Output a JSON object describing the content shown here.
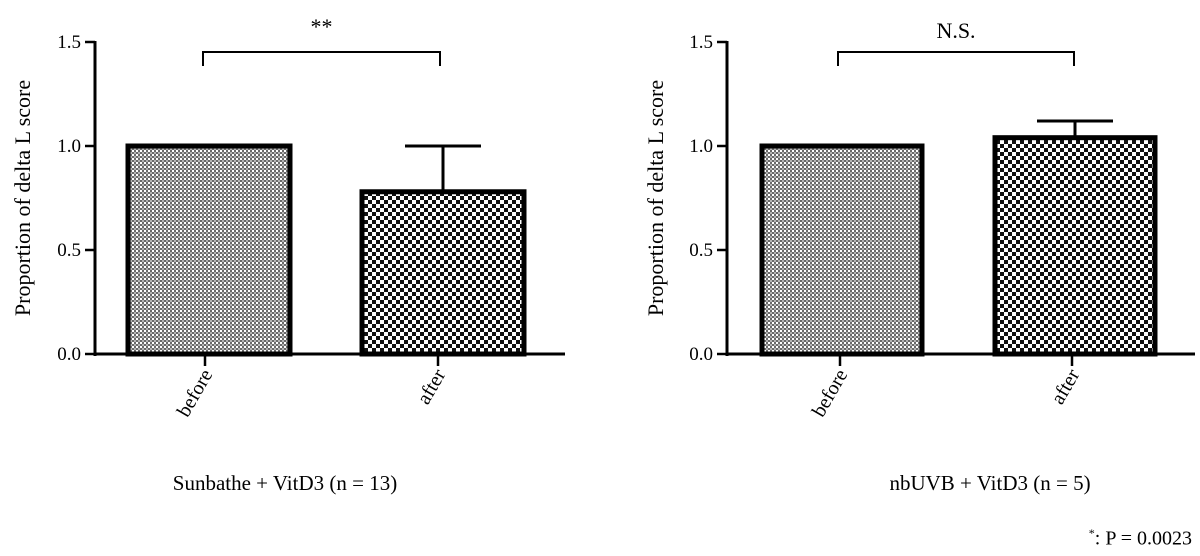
{
  "chart_data": [
    {
      "type": "bar",
      "categories": [
        "before",
        "after"
      ],
      "values": [
        1.0,
        0.78
      ],
      "error_upper": [
        0,
        0.22
      ],
      "ylabel": "Proportion of delta L score",
      "ylim": [
        0,
        1.5
      ],
      "yticks": [
        "0.0",
        "0.5",
        "1.0",
        "1.5"
      ],
      "significance": "**",
      "caption": "Sunbathe + VitD3 (n = 13)"
    },
    {
      "type": "bar",
      "categories": [
        "before",
        "after"
      ],
      "values": [
        1.0,
        1.04
      ],
      "error_upper": [
        0,
        0.08
      ],
      "ylabel": "Proportion of delta L score",
      "ylim": [
        0,
        1.5
      ],
      "yticks": [
        "0.0",
        "0.5",
        "1.0",
        "1.5"
      ],
      "significance": "N.S.",
      "caption": "nbUVB + VitD3 (n = 5)"
    }
  ],
  "footnote": {
    "marker": "*",
    "text": ": P = 0.0023"
  },
  "colors": {
    "before_fill": "#8a8a8a",
    "after_fill": "#1a1a1a",
    "axis": "#000000"
  }
}
